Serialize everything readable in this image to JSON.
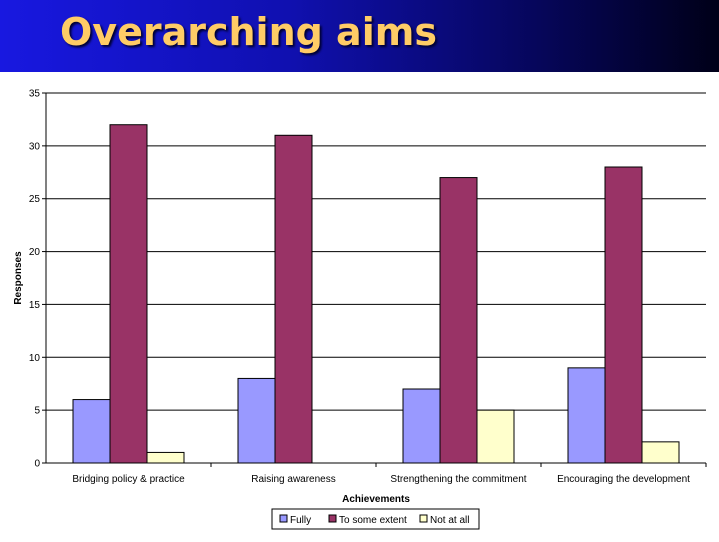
{
  "slide": {
    "title": "Overarching aims"
  },
  "chart_data": {
    "type": "bar",
    "categories": [
      "Bridging policy & practice",
      "Raising awareness",
      "Strengthening the commitment",
      "Encouraging the development"
    ],
    "series": [
      {
        "name": "Fully",
        "values": [
          6,
          8,
          7,
          9
        ],
        "color": "#9999ff"
      },
      {
        "name": "To some extent",
        "values": [
          32,
          31,
          27,
          28
        ],
        "color": "#993366"
      },
      {
        "name": "Not at all",
        "values": [
          1,
          0,
          5,
          2
        ],
        "color": "#ffffcc"
      }
    ],
    "xlabel": "Achievements",
    "ylabel": "Responses",
    "ylim": [
      0,
      35
    ],
    "yticks": [
      0,
      5,
      10,
      15,
      20,
      25,
      30,
      35
    ],
    "grid": true,
    "legend_position": "bottom"
  }
}
